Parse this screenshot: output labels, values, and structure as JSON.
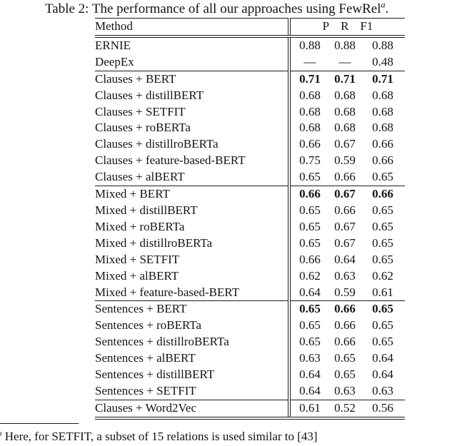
{
  "caption": {
    "prefix": "Table 2: The performance of all our approaches using FewRel",
    "superscript": "a",
    "suffix": "."
  },
  "table": {
    "header": {
      "method": "Method",
      "p": "P",
      "r": "R",
      "f1": "F1"
    },
    "sections": [
      {
        "rows": [
          {
            "method": "ERNIE",
            "p": "0.88",
            "r": "0.88",
            "f1": "0.88",
            "bold": false
          },
          {
            "method": "DeepEx",
            "p": "—",
            "r": "—",
            "f1": "0.48",
            "bold": false
          }
        ]
      },
      {
        "rows": [
          {
            "method": "Clauses + BERT",
            "p": "0.71",
            "r": "0.71",
            "f1": "0.71",
            "bold": true
          },
          {
            "method": "Clauses + distillBERT",
            "p": "0.68",
            "r": "0.68",
            "f1": "0.68",
            "bold": false
          },
          {
            "method": "Clauses + SETFIT",
            "p": "0.68",
            "r": "0.68",
            "f1": "0.68",
            "bold": false
          },
          {
            "method": "Clauses + roBERTa",
            "p": "0.68",
            "r": "0.68",
            "f1": "0.68",
            "bold": false
          },
          {
            "method": "Clauses + distillroBERTa",
            "p": "0.66",
            "r": "0.67",
            "f1": "0.66",
            "bold": false
          },
          {
            "method": "Clauses + feature-based-BERT",
            "p": "0.75",
            "r": "0.59",
            "f1": "0.66",
            "bold": false
          },
          {
            "method": "Clauses + alBERT",
            "p": "0.65",
            "r": "0.66",
            "f1": "0.65",
            "bold": false
          }
        ]
      },
      {
        "rows": [
          {
            "method": "Mixed + BERT",
            "p": "0.66",
            "r": "0.67",
            "f1": "0.66",
            "bold": true
          },
          {
            "method": "Mixed + distillBERT",
            "p": "0.65",
            "r": "0.66",
            "f1": "0.65",
            "bold": false
          },
          {
            "method": "Mixed + roBERTa",
            "p": "0.65",
            "r": "0.67",
            "f1": "0.65",
            "bold": false
          },
          {
            "method": "Mixed + distillroBERTa",
            "p": "0.65",
            "r": "0.67",
            "f1": "0.65",
            "bold": false
          },
          {
            "method": "Mixed + SETFIT",
            "p": "0.66",
            "r": "0.64",
            "f1": "0.65",
            "bold": false
          },
          {
            "method": "Mixed + alBERT",
            "p": "0.62",
            "r": "0.63",
            "f1": "0.62",
            "bold": false
          },
          {
            "method": "Mixed + feature-based-BERT",
            "p": "0.64",
            "r": "0.59",
            "f1": "0.61",
            "bold": false
          }
        ]
      },
      {
        "rows": [
          {
            "method": "Sentences + BERT",
            "p": "0.65",
            "r": "0.66",
            "f1": "0.65",
            "bold": true
          },
          {
            "method": "Sentences + roBERTa",
            "p": "0.65",
            "r": "0.66",
            "f1": "0.65",
            "bold": false
          },
          {
            "method": "Sentences + distillroBERTa",
            "p": "0.65",
            "r": "0.66",
            "f1": "0.65",
            "bold": false
          },
          {
            "method": "Sentences + alBERT",
            "p": "0.63",
            "r": "0.65",
            "f1": "0.64",
            "bold": false
          },
          {
            "method": "Sentences + distillBERT",
            "p": "0.64",
            "r": "0.65",
            "f1": "0.64",
            "bold": false
          },
          {
            "method": "Sentences + SETFIT",
            "p": "0.64",
            "r": "0.63",
            "f1": "0.63",
            "bold": false
          }
        ]
      },
      {
        "rows": [
          {
            "method": "Clauses + Word2Vec",
            "p": "0.61",
            "r": "0.52",
            "f1": "0.56",
            "bold": false
          }
        ]
      }
    ]
  },
  "footnote": {
    "marker": "a",
    "text": "Here, for SETFIT, a subset of 15 relations is used similar to [43]"
  }
}
